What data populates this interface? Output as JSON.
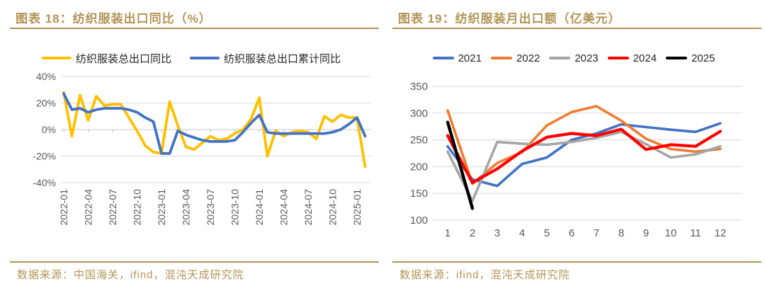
{
  "page": {
    "background": "#FFFFFF",
    "accent_color": "#B29455",
    "axis_text_color": "#595959",
    "gridline_color": "#D9D9D9"
  },
  "figures": [
    {
      "title": "图表 18：纺织服装出口同比（%）",
      "source": "数据来源：中国海关，ifind，混沌天成研究院",
      "legend": [
        {
          "label": "纺织服装总出口同比",
          "color": "#FFC000"
        },
        {
          "label": "纺织服装总出口累计同比",
          "color": "#4472C4"
        }
      ],
      "chart_data": {
        "type": "line",
        "title": "纺织服装出口同比（%）",
        "xlabel": "",
        "ylabel": "",
        "grid": true,
        "legend_position": "top",
        "ylim": [
          -40,
          40
        ],
        "y_ticks": [
          {
            "label": "40%",
            "value": 40
          },
          {
            "label": "20%",
            "value": 20
          },
          {
            "label": "0%",
            "value": 0
          },
          {
            "label": "-20%",
            "value": -20
          },
          {
            "label": "-40%",
            "value": -40
          }
        ],
        "x": [
          "2022-01",
          "2022-02",
          "2022-03",
          "2022-04",
          "2022-05",
          "2022-06",
          "2022-07",
          "2022-08",
          "2022-09",
          "2022-10",
          "2022-11",
          "2022-12",
          "2023-01",
          "2023-02",
          "2023-03",
          "2023-04",
          "2023-05",
          "2023-06",
          "2023-07",
          "2023-08",
          "2023-09",
          "2023-10",
          "2023-11",
          "2023-12",
          "2024-01",
          "2024-02",
          "2024-03",
          "2024-04",
          "2024-05",
          "2024-06",
          "2024-07",
          "2024-08",
          "2024-09",
          "2024-10",
          "2024-11",
          "2024-12",
          "2025-01",
          "2025-02"
        ],
        "x_tick_labels": [
          "2022-01",
          "2022-04",
          "2022-07",
          "2022-10",
          "2023-01",
          "2023-04",
          "2023-07",
          "2023-10",
          "2024-01",
          "2024-04",
          "2024-07",
          "2024-10",
          "2025-01"
        ],
        "x_tick_every": 3,
        "series": [
          {
            "name": "纺织服装总出口同比",
            "color": "#FFC000",
            "values": [
              28,
              -5,
              26,
              7,
              25,
              18,
              19,
              19,
              9,
              -1,
              -12,
              -17,
              -18,
              21,
              3,
              -13,
              -15,
              -10,
              -5,
              -8,
              -7,
              -3,
              0,
              8,
              24,
              -20,
              -1,
              -5,
              -2,
              -1,
              -2,
              -7,
              10,
              6,
              11,
              9,
              9,
              -28
            ]
          },
          {
            "name": "纺织服装总出口累计同比",
            "color": "#4472C4",
            "values": [
              27,
              15,
              16,
              13,
              15,
              16,
              16,
              16,
              15,
              13,
              9,
              6,
              -18,
              -18,
              -1,
              -4,
              -6,
              -8,
              -9,
              -9,
              -9,
              -8,
              -2,
              5,
              11,
              -2,
              -3,
              -3,
              -3,
              -3,
              -3,
              -3,
              -3,
              -2,
              0,
              4,
              9,
              -5
            ]
          }
        ]
      }
    },
    {
      "title": "图表 19：纺织服装月出口额（亿美元）",
      "source": "数据来源：ifind，混沌天成研究院",
      "legend": [
        {
          "label": "2021",
          "color": "#4472C4"
        },
        {
          "label": "2022",
          "color": "#ED7D31"
        },
        {
          "label": "2023",
          "color": "#A5A5A5"
        },
        {
          "label": "2024",
          "color": "#FF0000"
        },
        {
          "label": "2025",
          "color": "#000000"
        }
      ],
      "chart_data": {
        "type": "line",
        "title": "纺织服装月出口额（亿美元）",
        "xlabel": "",
        "ylabel": "",
        "grid": true,
        "legend_position": "top",
        "ylim": [
          100,
          350
        ],
        "y_ticks": [
          350,
          300,
          250,
          200,
          150,
          100
        ],
        "x": [
          1,
          2,
          3,
          4,
          5,
          6,
          7,
          8,
          9,
          10,
          11,
          12
        ],
        "series": [
          {
            "name": "2021",
            "color": "#4472C4",
            "values": [
              238,
              176,
              164,
              205,
              217,
              250,
              262,
              279,
              274,
              269,
              265,
              281
            ]
          },
          {
            "name": "2022",
            "color": "#ED7D31",
            "values": [
              305,
              168,
              207,
              227,
              277,
              302,
              313,
              286,
              252,
              233,
              228,
              233
            ]
          },
          {
            "name": "2023",
            "color": "#A5A5A5",
            "values": [
              228,
              136,
              246,
              243,
              241,
              246,
              254,
              265,
              242,
              217,
              223,
              238
            ]
          },
          {
            "name": "2024",
            "color": "#FF0000",
            "values": [
              258,
              170,
              196,
              229,
              255,
              262,
              258,
              270,
              232,
              241,
              238,
              266
            ]
          },
          {
            "name": "2025",
            "color": "#000000",
            "values": [
              283,
              122
            ]
          }
        ]
      }
    }
  ]
}
